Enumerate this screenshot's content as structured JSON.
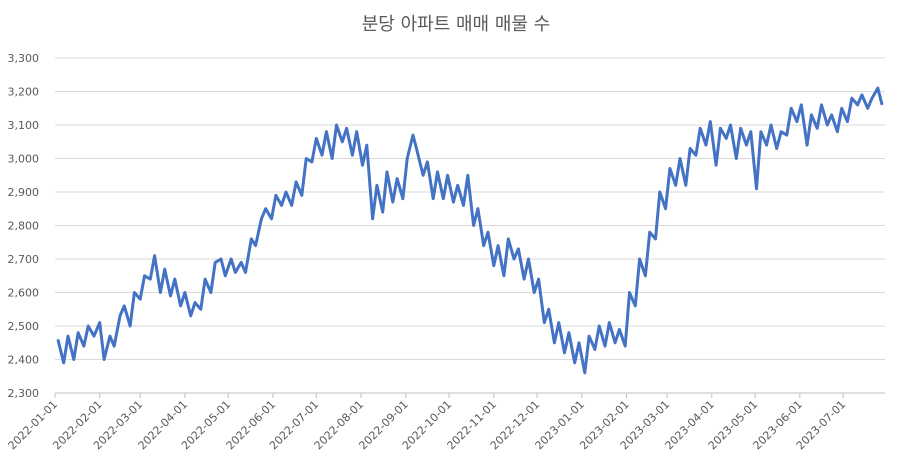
{
  "chart_data": {
    "type": "line",
    "title": "분당 아파트 매매 매물 수",
    "color": "#4472c4",
    "grid": true,
    "xlim": [
      "2022-01-01",
      "2023-07-30"
    ],
    "xticks": [
      "2022-01-01",
      "2022-02-01",
      "2022-03-01",
      "2022-04-01",
      "2022-05-01",
      "2022-06-01",
      "2022-07-01",
      "2022-08-01",
      "2022-09-01",
      "2022-10-01",
      "2022-11-01",
      "2022-12-01",
      "2023-01-01",
      "2023-02-01",
      "2023-03-01",
      "2023-04-01",
      "2023-05-01",
      "2023-06-01",
      "2023-07-01"
    ],
    "ylim": [
      2300,
      3300
    ],
    "yticks": [
      {
        "value": 2300,
        "label": "2,300"
      },
      {
        "value": 2400,
        "label": "2,400"
      },
      {
        "value": 2500,
        "label": "2,500"
      },
      {
        "value": 2600,
        "label": "2,600"
      },
      {
        "value": 2700,
        "label": "2,700"
      },
      {
        "value": 2800,
        "label": "2,800"
      },
      {
        "value": 2900,
        "label": "2,900"
      },
      {
        "value": 3000,
        "label": "3,000"
      },
      {
        "value": 3100,
        "label": "3,100"
      },
      {
        "value": 3200,
        "label": "3,200"
      },
      {
        "value": 3300,
        "label": "3,300"
      }
    ],
    "x": [
      "2022-01-03",
      "2022-01-07",
      "2022-01-10",
      "2022-01-14",
      "2022-01-17",
      "2022-01-21",
      "2022-01-24",
      "2022-01-28",
      "2022-02-01",
      "2022-02-04",
      "2022-02-08",
      "2022-02-11",
      "2022-02-15",
      "2022-02-18",
      "2022-02-22",
      "2022-02-25",
      "2022-03-01",
      "2022-03-04",
      "2022-03-08",
      "2022-03-11",
      "2022-03-15",
      "2022-03-18",
      "2022-03-22",
      "2022-03-25",
      "2022-03-29",
      "2022-04-01",
      "2022-04-05",
      "2022-04-08",
      "2022-04-12",
      "2022-04-15",
      "2022-04-19",
      "2022-04-22",
      "2022-04-26",
      "2022-04-29",
      "2022-05-03",
      "2022-05-06",
      "2022-05-10",
      "2022-05-13",
      "2022-05-17",
      "2022-05-20",
      "2022-05-24",
      "2022-05-27",
      "2022-05-31",
      "2022-06-03",
      "2022-06-07",
      "2022-06-10",
      "2022-06-14",
      "2022-06-17",
      "2022-06-21",
      "2022-06-24",
      "2022-06-28",
      "2022-07-01",
      "2022-07-05",
      "2022-07-08",
      "2022-07-12",
      "2022-07-15",
      "2022-07-19",
      "2022-07-22",
      "2022-07-26",
      "2022-07-29",
      "2022-08-02",
      "2022-08-05",
      "2022-08-09",
      "2022-08-12",
      "2022-08-16",
      "2022-08-19",
      "2022-08-23",
      "2022-08-26",
      "2022-08-30",
      "2022-09-02",
      "2022-09-06",
      "2022-09-09",
      "2022-09-13",
      "2022-09-16",
      "2022-09-20",
      "2022-09-23",
      "2022-09-27",
      "2022-09-30",
      "2022-10-04",
      "2022-10-07",
      "2022-10-11",
      "2022-10-14",
      "2022-10-18",
      "2022-10-21",
      "2022-10-25",
      "2022-10-28",
      "2022-11-01",
      "2022-11-04",
      "2022-11-08",
      "2022-11-11",
      "2022-11-15",
      "2022-11-18",
      "2022-11-22",
      "2022-11-25",
      "2022-11-29",
      "2022-12-02",
      "2022-12-06",
      "2022-12-09",
      "2022-12-13",
      "2022-12-16",
      "2022-12-20",
      "2022-12-23",
      "2022-12-27",
      "2022-12-30",
      "2023-01-03",
      "2023-01-06",
      "2023-01-10",
      "2023-01-13",
      "2023-01-17",
      "2023-01-20",
      "2023-01-24",
      "2023-01-27",
      "2023-01-31",
      "2023-02-03",
      "2023-02-07",
      "2023-02-10",
      "2023-02-14",
      "2023-02-17",
      "2023-02-21",
      "2023-02-24",
      "2023-02-28",
      "2023-03-03",
      "2023-03-07",
      "2023-03-10",
      "2023-03-14",
      "2023-03-17",
      "2023-03-21",
      "2023-03-24",
      "2023-03-28",
      "2023-03-31",
      "2023-04-04",
      "2023-04-07",
      "2023-04-11",
      "2023-04-14",
      "2023-04-18",
      "2023-04-21",
      "2023-04-25",
      "2023-04-28",
      "2023-05-02",
      "2023-05-05",
      "2023-05-09",
      "2023-05-12",
      "2023-05-16",
      "2023-05-19",
      "2023-05-23",
      "2023-05-26",
      "2023-05-30",
      "2023-06-02",
      "2023-06-06",
      "2023-06-09",
      "2023-06-13",
      "2023-06-16",
      "2023-06-20",
      "2023-06-23",
      "2023-06-27",
      "2023-06-30",
      "2023-07-04",
      "2023-07-07",
      "2023-07-11",
      "2023-07-14",
      "2023-07-18",
      "2023-07-21",
      "2023-07-25",
      "2023-07-28"
    ],
    "values": [
      2460,
      2390,
      2470,
      2400,
      2480,
      2440,
      2500,
      2470,
      2510,
      2400,
      2470,
      2440,
      2530,
      2560,
      2500,
      2600,
      2580,
      2650,
      2640,
      2710,
      2600,
      2670,
      2590,
      2640,
      2560,
      2600,
      2530,
      2570,
      2550,
      2640,
      2600,
      2690,
      2700,
      2650,
      2700,
      2660,
      2690,
      2660,
      2760,
      2740,
      2820,
      2850,
      2820,
      2890,
      2860,
      2900,
      2860,
      2930,
      2890,
      3000,
      2990,
      3060,
      3010,
      3080,
      3000,
      3100,
      3050,
      3090,
      3010,
      3080,
      2980,
      3040,
      2820,
      2920,
      2840,
      2960,
      2870,
      2940,
      2880,
      3000,
      3070,
      3020,
      2950,
      2990,
      2880,
      2960,
      2880,
      2950,
      2870,
      2920,
      2860,
      2950,
      2800,
      2850,
      2740,
      2780,
      2680,
      2740,
      2650,
      2760,
      2700,
      2730,
      2640,
      2700,
      2600,
      2640,
      2510,
      2550,
      2450,
      2510,
      2420,
      2480,
      2390,
      2450,
      2360,
      2470,
      2430,
      2500,
      2440,
      2510,
      2450,
      2490,
      2440,
      2600,
      2560,
      2700,
      2650,
      2780,
      2760,
      2900,
      2850,
      2970,
      2920,
      3000,
      2920,
      3030,
      3010,
      3090,
      3040,
      3110,
      2980,
      3090,
      3060,
      3100,
      3000,
      3090,
      3040,
      3080,
      2910,
      3080,
      3040,
      3100,
      3030,
      3080,
      3070,
      3150,
      3110,
      3160,
      3040,
      3130,
      3090,
      3160,
      3100,
      3130,
      3080,
      3150,
      3110,
      3180,
      3160,
      3190,
      3150,
      3180,
      3210,
      3160
    ]
  }
}
